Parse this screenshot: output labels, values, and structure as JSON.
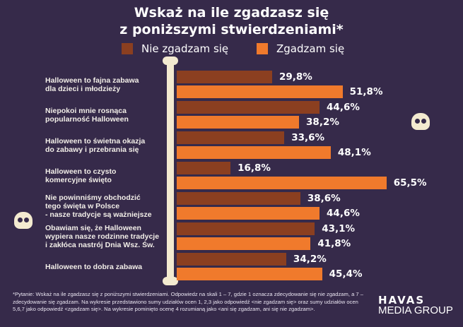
{
  "chart_data": {
    "type": "bar",
    "orientation": "horizontal",
    "title": "Wskaż na ile zgadzasz się z poniższymi stwierdzeniami*",
    "title_lines": [
      "Wskaż na ile zgadzasz się",
      "z poniższymi stwierdzeniami*"
    ],
    "categories": [
      "Halloween to fajna zabawa dla dzieci i młodzieży",
      "Niepokoi mnie rosnąca popularność Halloween",
      "Halloween to świetna okazja do zabawy i przebrania się",
      "Halloween to czysto komercyjne święto",
      "Nie powinniśmy obchodzić tego święta w Polsce - nasze tradycje są ważniejsze",
      "Obawiam się, że Halloween wypiera nasze rodzinne tradycje i zakłóca nastrój Dnia Wsz. Św.",
      "Halloween to dobra zabawa"
    ],
    "category_lines": [
      [
        "Halloween to fajna zabawa",
        "dla dzieci i młodzieży"
      ],
      [
        "Niepokoi mnie rosnąca",
        "popularność Halloween"
      ],
      [
        "Halloween to świetna okazja",
        "do zabawy i przebrania się"
      ],
      [
        "Halloween to czysto",
        "komercyjne święto"
      ],
      [
        "Nie powinniśmy obchodzić",
        "tego święta w Polsce",
        "- nasze tradycje są ważniejsze"
      ],
      [
        "Obawiam się, że Halloween",
        "wypiera nasze rodzinne tradycje",
        "i zakłóca nastrój Dnia Wsz. Św."
      ],
      [
        "Halloween to dobra zabawa"
      ]
    ],
    "series": [
      {
        "name": "Nie zgadzam się",
        "color": "#8b3f20",
        "values": [
          29.8,
          44.6,
          33.6,
          16.8,
          38.6,
          43.1,
          34.2
        ],
        "labels": [
          "29,8%",
          "44,6%",
          "33,6%",
          "16,8%",
          "38,6%",
          "43,1%",
          "34,2%"
        ]
      },
      {
        "name": "Zgadzam się",
        "color": "#f07a2c",
        "values": [
          51.8,
          38.2,
          48.1,
          65.5,
          44.6,
          41.8,
          45.4
        ],
        "labels": [
          "51,8%",
          "38,2%",
          "48,1%",
          "65,5%",
          "44,6%",
          "41,8%",
          "45,4%"
        ]
      }
    ],
    "unit": "%",
    "legend": "top",
    "grid": false
  },
  "footnote": "*Pytanie: Wskaż na ile zgadzasz się z poniższymi stwierdzeniami. Odpowiedz na skali 1 – 7, gdzie 1 oznacza zdecydowanie się nie zgadzam, a 7 – zdecydowanie się zgadzam. Na wykresie przedstawiono sumy udziałów ocen 1, 2,3 jako odpowiedź <nie zgadzam się> oraz sumy udziałów ocen 5,6,7 jako odpowiedź <zgadzam się>. Na wykresie pominięto ocenę 4 rozumianą jako <ani się zgadzam, ani się nie zgadzam>.",
  "logo": {
    "line1": "HAVAS",
    "line2": "MEDIA GROUP"
  }
}
